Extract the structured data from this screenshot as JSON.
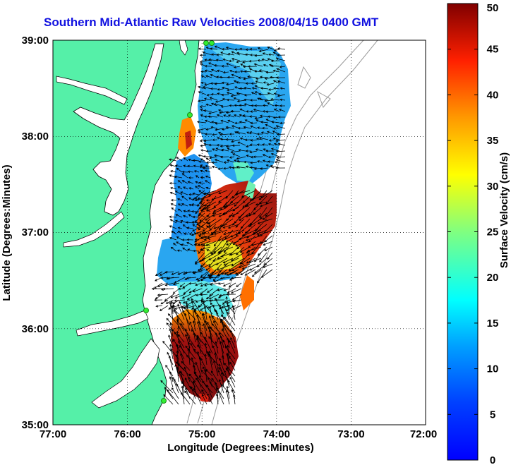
{
  "title": "Southern Mid-Atlantic Raw Velocities 2008/04/15 0400 GMT",
  "xlabel": "Longitude (Degrees:Minutes)",
  "ylabel": "Latitude (Degrees:Minutes)",
  "colorbar_label": "Surface Velocity (cm/s)",
  "x_ticks": [
    "77:00",
    "76:00",
    "75:00",
    "74:00",
    "73:00",
    "72:00"
  ],
  "y_ticks": [
    "39:00",
    "38:00",
    "37:00",
    "36:00",
    "35:00"
  ],
  "colorbar_ticks": [
    "0",
    "5",
    "10",
    "15",
    "20",
    "25",
    "30",
    "35",
    "40",
    "45",
    "50"
  ],
  "colors": {
    "land": "#55f0a8",
    "title": "#1010e0",
    "coast_line": "#000000",
    "isobath": "#9a9a9a",
    "station": "#33ee33"
  }
}
